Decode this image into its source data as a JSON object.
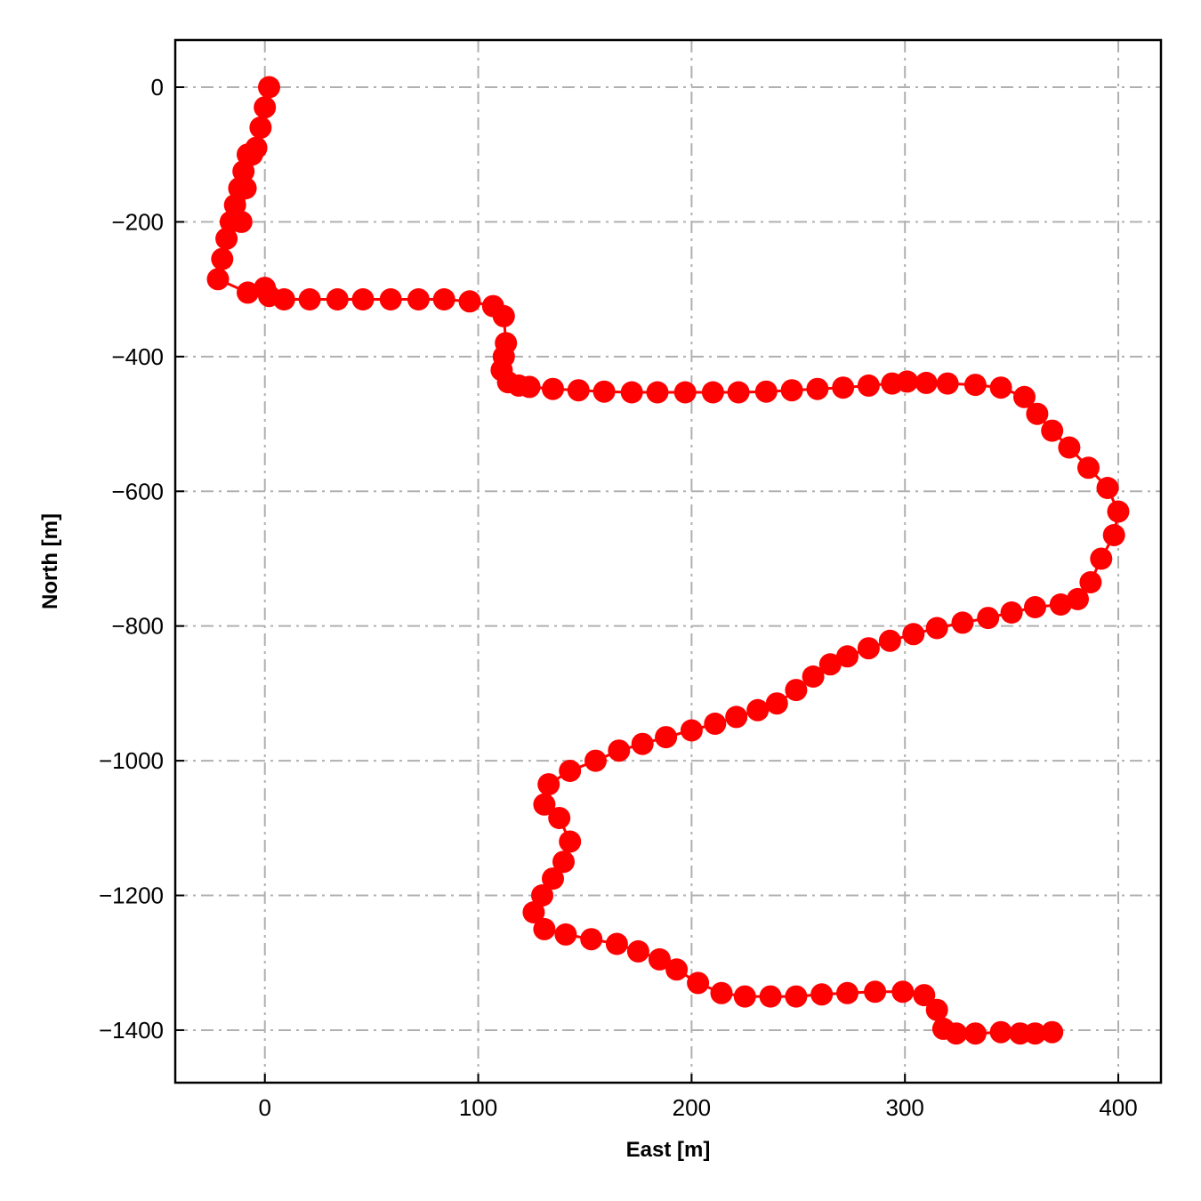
{
  "chart_data": {
    "type": "line",
    "title": "",
    "xlabel": "East [m]",
    "ylabel": "North [m]",
    "xlim": [
      -42,
      420
    ],
    "ylim": [
      -1478,
      70
    ],
    "xticks": [
      0,
      100,
      200,
      300,
      400
    ],
    "yticks": [
      0,
      -200,
      -400,
      -600,
      -800,
      -1000,
      -1200,
      -1400
    ],
    "xtick_labels": [
      "0",
      "100",
      "200",
      "300",
      "400"
    ],
    "ytick_labels": [
      "0",
      "−200",
      "−400",
      "−600",
      "−800",
      "−1000",
      "−1200",
      "−1400"
    ],
    "grid": true,
    "grid_style": "dash-dot",
    "tick_direction": "in",
    "legend": "none",
    "series": [
      {
        "color": "#ff0000",
        "marker": "circle",
        "x": [
          2,
          0,
          -2,
          -4,
          -6,
          -9,
          -11,
          -8,
          -10,
          -12,
          -14,
          -16,
          -18,
          -20,
          -22,
          -8,
          0,
          2,
          9,
          21,
          34,
          46,
          59,
          72,
          84,
          96,
          107,
          112,
          113,
          112,
          111,
          114,
          119,
          124,
          135,
          147,
          159,
          172,
          184,
          197,
          210,
          222,
          235,
          247,
          259,
          271,
          283,
          294,
          301,
          310,
          320,
          333,
          345,
          356,
          362,
          369,
          377,
          386,
          395,
          400,
          398,
          392,
          387,
          381,
          373,
          361,
          350,
          339,
          327,
          315,
          304,
          293,
          283,
          273,
          265,
          257,
          249,
          240,
          231,
          221,
          211,
          200,
          188,
          177,
          166,
          155,
          143,
          133,
          131,
          138,
          143,
          140,
          135,
          130,
          126,
          131,
          141,
          153,
          165,
          175,
          185,
          193,
          203,
          214,
          225,
          237,
          249,
          261,
          273,
          286,
          299,
          309,
          315,
          318,
          324,
          333,
          345,
          354,
          361,
          369
        ],
        "y": [
          0,
          -30,
          -60,
          -90,
          -100,
          -150,
          -200,
          -100,
          -125,
          -150,
          -175,
          -200,
          -225,
          -255,
          -285,
          -305,
          -298,
          -310,
          -315,
          -315,
          -315,
          -315,
          -315,
          -315,
          -315,
          -318,
          -325,
          -340,
          -380,
          -400,
          -420,
          -438,
          -443,
          -445,
          -448,
          -450,
          -452,
          -453,
          -453,
          -453,
          -453,
          -453,
          -452,
          -450,
          -448,
          -446,
          -443,
          -440,
          -437,
          -439,
          -440,
          -442,
          -446,
          -460,
          -485,
          -510,
          -535,
          -565,
          -595,
          -630,
          -665,
          -700,
          -735,
          -760,
          -768,
          -772,
          -780,
          -788,
          -795,
          -803,
          -812,
          -822,
          -833,
          -845,
          -857,
          -875,
          -895,
          -915,
          -925,
          -935,
          -945,
          -955,
          -965,
          -975,
          -985,
          -1000,
          -1015,
          -1035,
          -1065,
          -1085,
          -1120,
          -1150,
          -1175,
          -1200,
          -1225,
          -1250,
          -1258,
          -1265,
          -1272,
          -1283,
          -1295,
          -1310,
          -1330,
          -1345,
          -1350,
          -1350,
          -1350,
          -1347,
          -1345,
          -1343,
          -1343,
          -1348,
          -1370,
          -1398,
          -1405,
          -1405,
          -1403,
          -1405,
          -1405,
          -1403
        ]
      }
    ]
  }
}
